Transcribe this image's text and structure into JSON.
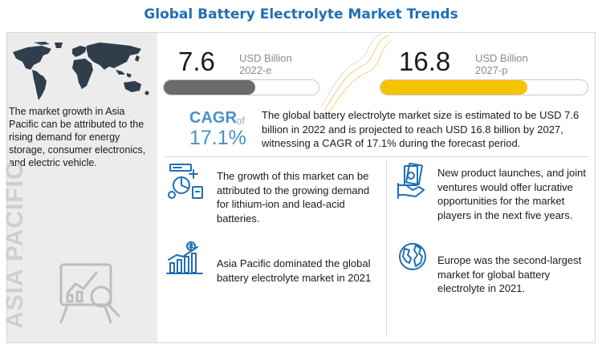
{
  "title": "Global Battery Electrolyte Market Trends",
  "left_panel": {
    "region_label": "ASIA PACIFIC",
    "text": "The market growth in Asia Pacific can be attributed to the rising demand for energy storage, consumer electronics, and electric vehicle."
  },
  "metrics": [
    {
      "value": "7.6",
      "unit": "USD Billion",
      "year": "2022-e",
      "fill_fraction": 0.59,
      "fill_color": "#6b6b6b"
    },
    {
      "value": "16.8",
      "unit": "USD Billion",
      "year": "2027-p",
      "fill_fraction": 0.71,
      "fill_color": "#f5c400"
    }
  ],
  "cagr": {
    "label": "CAGR",
    "of": "of",
    "value": "17.1%",
    "text": "The global battery electrolyte market size is estimated to be USD 7.6 billion in 2022 and is projected to reach USD 16.8 billion by 2027, witnessing a CAGR of 17.1% during the forecast period."
  },
  "points": [
    {
      "icon": "battery-drivers-icon",
      "text": "The growth of this market can be attributed to the growing demand for lithium-ion and lead-acid batteries."
    },
    {
      "icon": "money-handshake-icon",
      "text": "New product launches, and joint ventures would offer lucrative opportunities for the market players in the next five years."
    },
    {
      "icon": "growth-chart-icon",
      "text": "Asia Pacific dominated the global battery electrolyte market in 2021"
    },
    {
      "icon": "globe-icon",
      "text": "Europe was the second-largest market for global battery electrolyte in 2021."
    }
  ],
  "colors": {
    "title": "#1f6fb5",
    "cagr": "#4a90c8",
    "accent_yellow": "#f5c400",
    "bar_gray": "#6b6b6b",
    "icon_blue": "#1f6fb5"
  }
}
